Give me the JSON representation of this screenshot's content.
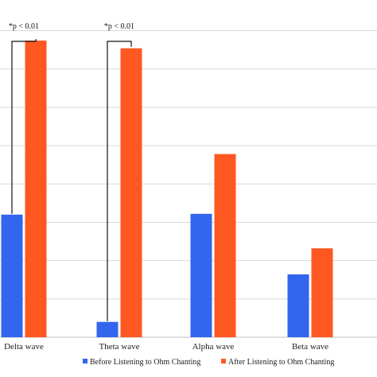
{
  "chart_data": {
    "type": "bar",
    "categories": [
      "Delta wave",
      "Theta wave",
      "Alpha wave",
      "Beta wave"
    ],
    "series": [
      {
        "name": "Before Listening to Ohm Chanting",
        "color": "#3366ee",
        "values": [
          16,
          2,
          16.1,
          8.2
        ]
      },
      {
        "name": "After Listening to Ohm Chanting",
        "color": "#ff5722",
        "values": [
          38.7,
          37.7,
          23.9,
          11.6
        ]
      }
    ],
    "ylim": [
      0,
      44
    ],
    "grid": "horizontal",
    "legend": "bottom",
    "annotations": [
      {
        "category": "Delta wave",
        "text": "*p < 0.01"
      },
      {
        "category": "Theta wave",
        "text": "*p < 0.01"
      }
    ]
  }
}
